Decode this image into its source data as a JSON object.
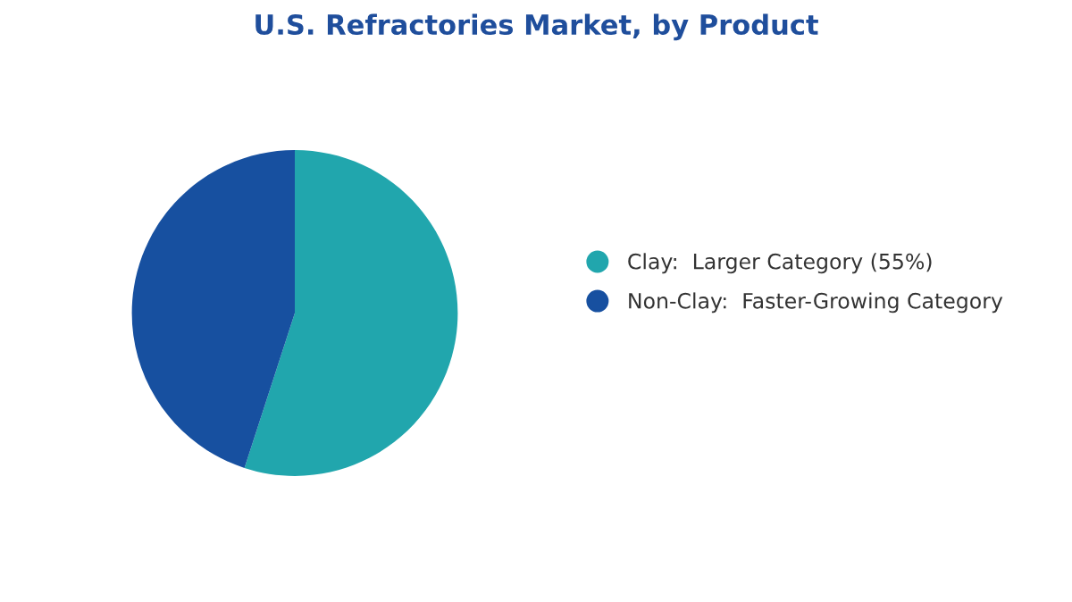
{
  "chart_data": {
    "type": "pie",
    "title": "U.S. Refractories Market, by Product",
    "categories": [
      "Clay:  Larger Category (55%)",
      "Non-Clay:  Faster-Growing Category"
    ],
    "values": [
      55,
      45
    ],
    "colors": [
      "#21a6ad",
      "#1750a0"
    ],
    "legend": "right"
  }
}
